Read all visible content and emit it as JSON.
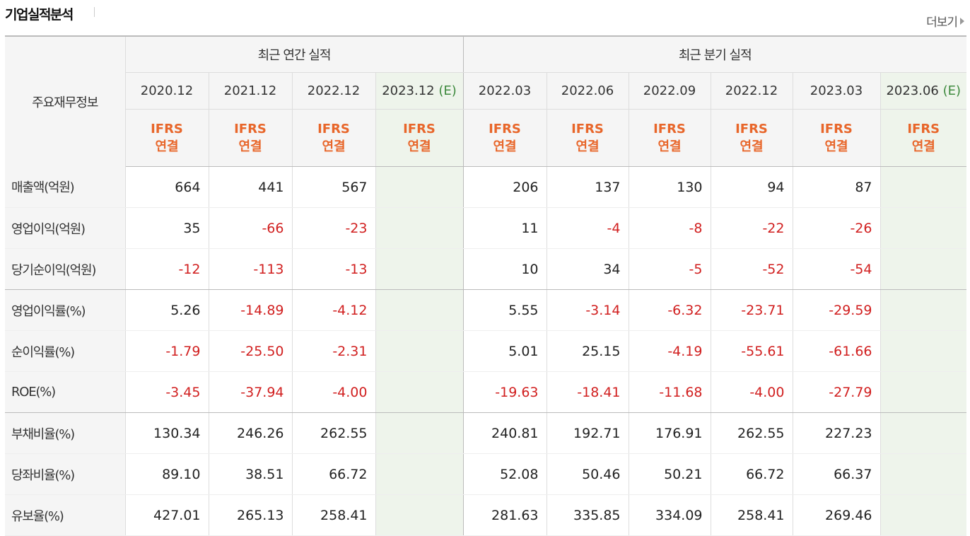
{
  "header": {
    "title": "기업실적분석",
    "more_label": "더보기"
  },
  "table": {
    "corner_label": "주요재무정보",
    "groups": {
      "annual": "최근 연간 실적",
      "quarterly": "최근 분기 실적"
    },
    "periods": [
      {
        "label": "2020.12",
        "est": ""
      },
      {
        "label": "2021.12",
        "est": ""
      },
      {
        "label": "2022.12",
        "est": ""
      },
      {
        "label": "2023.12",
        "est": "(E)"
      },
      {
        "label": "2022.03",
        "est": ""
      },
      {
        "label": "2022.06",
        "est": ""
      },
      {
        "label": "2022.09",
        "est": ""
      },
      {
        "label": "2022.12",
        "est": ""
      },
      {
        "label": "2023.03",
        "est": ""
      },
      {
        "label": "2023.06",
        "est": "(E)"
      }
    ],
    "ifrs": {
      "line1": "IFRS",
      "line2": "연결"
    },
    "rows": [
      {
        "label": "매출액(억원)",
        "values": [
          "664",
          "441",
          "567",
          "",
          "206",
          "137",
          "130",
          "94",
          "87",
          ""
        ]
      },
      {
        "label": "영업이익(억원)",
        "values": [
          "35",
          "-66",
          "-23",
          "",
          "11",
          "-4",
          "-8",
          "-22",
          "-26",
          ""
        ]
      },
      {
        "label": "당기순이익(억원)",
        "values": [
          "-12",
          "-113",
          "-13",
          "",
          "10",
          "34",
          "-5",
          "-52",
          "-54",
          ""
        ]
      },
      {
        "label": "영업이익률(%)",
        "values": [
          "5.26",
          "-14.89",
          "-4.12",
          "",
          "5.55",
          "-3.14",
          "-6.32",
          "-23.71",
          "-29.59",
          ""
        ]
      },
      {
        "label": "순이익률(%)",
        "values": [
          "-1.79",
          "-25.50",
          "-2.31",
          "",
          "5.01",
          "25.15",
          "-4.19",
          "-55.61",
          "-61.66",
          ""
        ]
      },
      {
        "label": "ROE(%)",
        "values": [
          "-3.45",
          "-37.94",
          "-4.00",
          "",
          "-19.63",
          "-18.41",
          "-11.68",
          "-4.00",
          "-27.79",
          ""
        ]
      },
      {
        "label": "부채비율(%)",
        "values": [
          "130.34",
          "246.26",
          "262.55",
          "",
          "240.81",
          "192.71",
          "176.91",
          "262.55",
          "227.23",
          ""
        ]
      },
      {
        "label": "당좌비율(%)",
        "values": [
          "89.10",
          "38.51",
          "66.72",
          "",
          "52.08",
          "50.46",
          "50.21",
          "66.72",
          "66.37",
          ""
        ]
      },
      {
        "label": "유보율(%)",
        "values": [
          "427.01",
          "265.13",
          "258.41",
          "",
          "281.63",
          "335.85",
          "334.09",
          "258.41",
          "269.46",
          ""
        ]
      }
    ]
  },
  "colors": {
    "negative": "#d11f1f",
    "ifrs": "#e8662a",
    "estimate_bg": "#eef4eb",
    "estimate_text": "#3e8a3e"
  }
}
